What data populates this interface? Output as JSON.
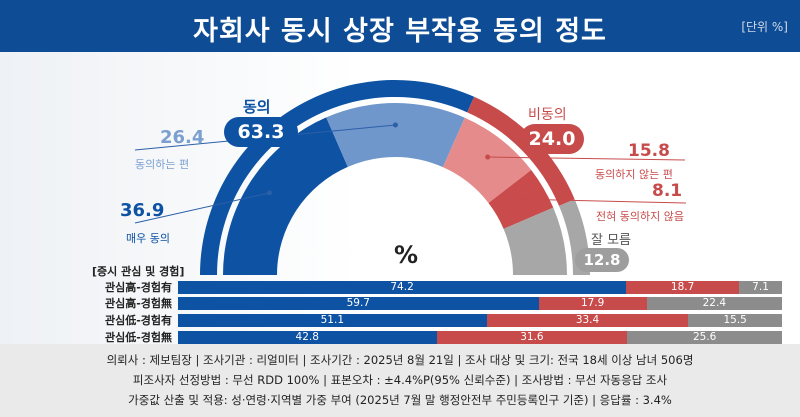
{
  "header": {
    "title": "자회사 동시 상장 부작용 동의 정도",
    "unit": "[단위 %]"
  },
  "colors": {
    "agree_strong": "#0e52a4",
    "agree_somewhat": "#6f97cc",
    "disagree_total": "#c84b4b",
    "disagree_somewhat": "#e58b8b",
    "disagree_strong": "#c94b4b",
    "dontknow": "#a7a7a7",
    "header_bg": "#0e4d96"
  },
  "labels": {
    "agree_total_label": "동의",
    "agree_total_value": "63.3",
    "agree_somewhat_value": "26.4",
    "agree_somewhat_label": "동의하는 편",
    "agree_strong_value": "36.9",
    "agree_strong_label": "매우 동의",
    "disagree_total_label": "비동의",
    "disagree_total_value": "24.0",
    "disagree_somewhat_value": "15.8",
    "disagree_somewhat_label": "동의하지 않는 편",
    "disagree_strong_value": "8.1",
    "disagree_strong_label": "전혀 동의하지 않음",
    "dontknow_label": "잘 모름",
    "dontknow_value": "12.8",
    "percent_sign": "%"
  },
  "chart_data": [
    {
      "type": "pie",
      "subtype": "half-donut",
      "categories": [
        "매우 동의",
        "동의하는 편",
        "동의하지 않는 편",
        "전혀 동의하지 않음",
        "잘 모름"
      ],
      "values": [
        36.9,
        26.4,
        15.8,
        8.1,
        12.8
      ],
      "groups": [
        {
          "name": "동의",
          "value": 63.3
        },
        {
          "name": "비동의",
          "value": 24.0
        },
        {
          "name": "잘 모름",
          "value": 12.8
        }
      ]
    },
    {
      "type": "bar",
      "subtype": "stacked-horizontal",
      "title": "[증시 관심 및 경험]",
      "categories": [
        "관심高-경험有",
        "관심高-경험無",
        "관심低-경험有",
        "관심低-경험無"
      ],
      "series": [
        {
          "name": "동의",
          "values": [
            74.2,
            59.7,
            51.1,
            42.8
          ]
        },
        {
          "name": "비동의",
          "values": [
            18.7,
            17.9,
            33.4,
            31.6
          ]
        },
        {
          "name": "잘 모름",
          "values": [
            7.1,
            22.4,
            15.5,
            25.6
          ]
        }
      ]
    }
  ],
  "footer": {
    "line1": "의뢰사 : 제보팀장 | 조사기관 : 리얼미터 | 조사기간 : 2025년 8월 21일 | 조사 대상 및 크기: 전국 18세 이상 남녀 506명",
    "line2": "피조사자 선정방법 : 무선 RDD 100% | 표본오차 : ±4.4%P(95% 신뢰수준) | 조사방법 : 무선 자동응답 조사",
    "line3": "가중값 산출 및 적용: 성·연령·지역별 가중 부여 (2025년 7월 말 행정안전부 주민등록인구 기준) | 응답률 : 3.4%"
  }
}
